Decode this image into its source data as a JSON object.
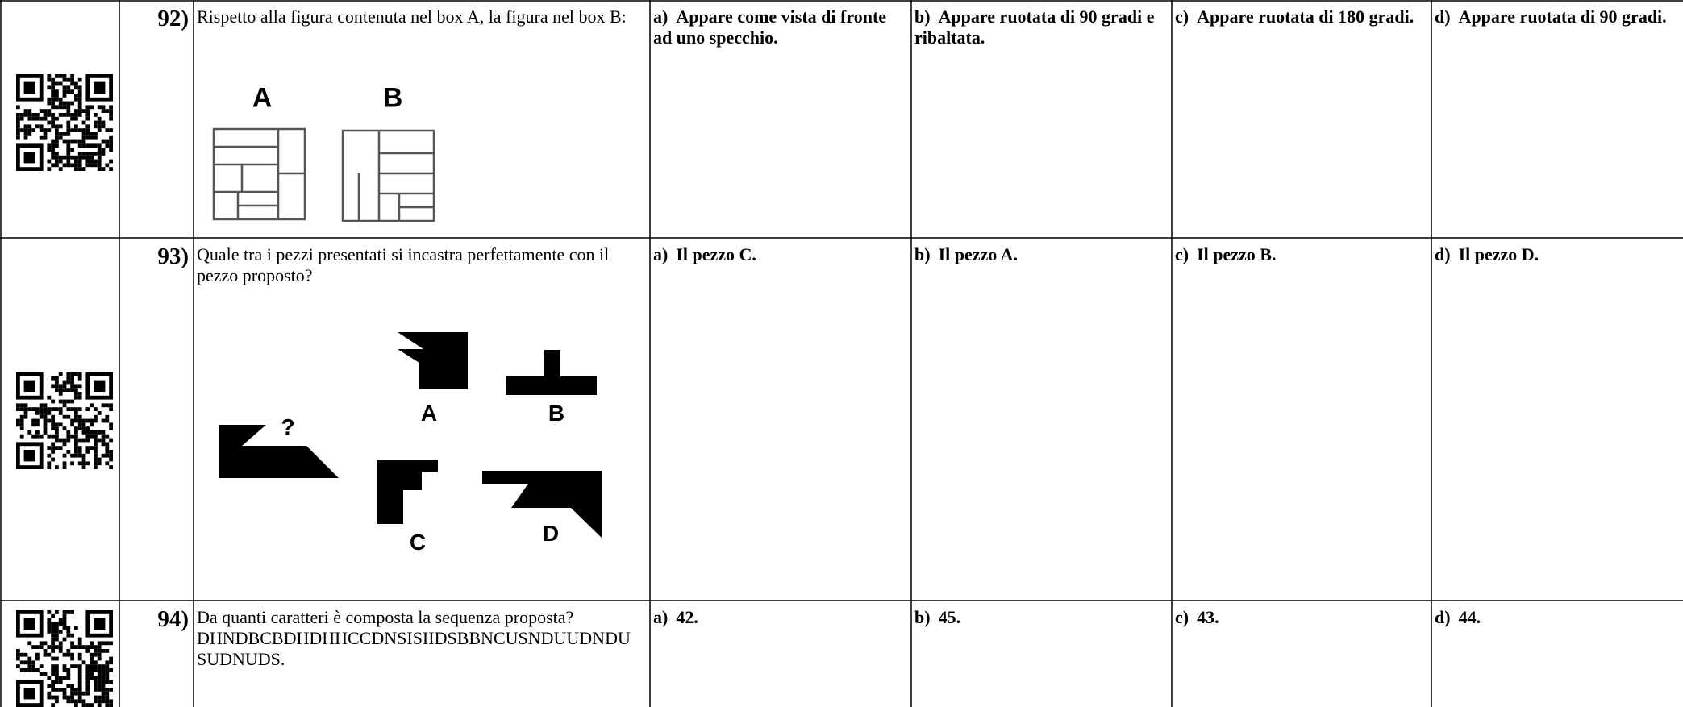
{
  "questions": [
    {
      "number": "92)",
      "text": "Rispetto alla figura contenuta nel box A, la figura nel box B:",
      "figure_labels": [
        "A",
        "B"
      ],
      "options": [
        {
          "letter": "a)",
          "text": "Appare come vista di fronte ad uno specchio."
        },
        {
          "letter": "b)",
          "text": "Appare ruotata di 90 gradi e ribaltata."
        },
        {
          "letter": "c)",
          "text": "Appare ruotata di 180 gradi."
        },
        {
          "letter": "d)",
          "text": "Appare ruotata di 90 gradi."
        }
      ]
    },
    {
      "number": "93)",
      "text": "Quale tra i pezzi presentati si incastra perfettamente con il pezzo proposto?",
      "figure_labels": [
        "?",
        "A",
        "B",
        "C",
        "D"
      ],
      "options": [
        {
          "letter": "a)",
          "text": "Il pezzo C."
        },
        {
          "letter": "b)",
          "text": "Il pezzo A."
        },
        {
          "letter": "c)",
          "text": "Il pezzo B."
        },
        {
          "letter": "d)",
          "text": "Il pezzo D."
        }
      ]
    },
    {
      "number": "94)",
      "text": "Da quanti caratteri è composta la sequenza proposta?",
      "sequence": "DHNDBCBDHDHHCCDNSISIIDSBBNCUSNDUUDNDUSUDNUDS.",
      "options": [
        {
          "letter": "a)",
          "text": "42."
        },
        {
          "letter": "b)",
          "text": "45."
        },
        {
          "letter": "c)",
          "text": "43."
        },
        {
          "letter": "d)",
          "text": "44."
        }
      ]
    }
  ]
}
